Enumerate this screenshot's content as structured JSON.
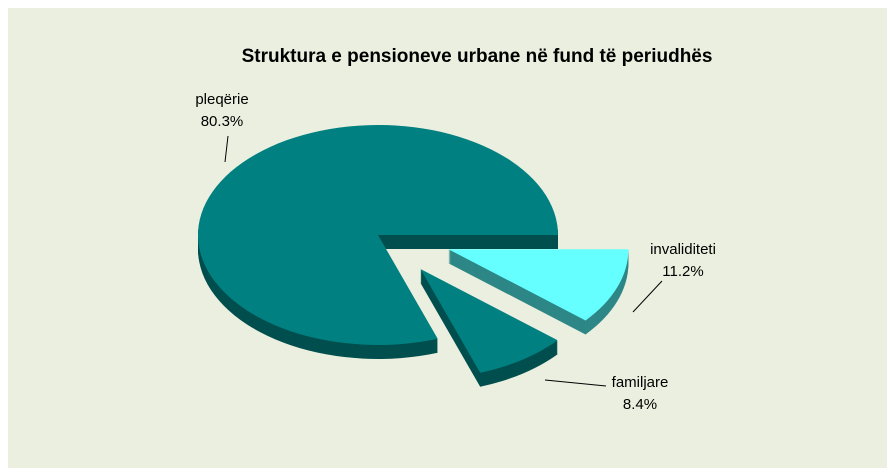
{
  "chart_data": {
    "type": "pie",
    "title": "Struktura e pensioneve urbane në fund të periudhës",
    "categories": [
      "pleqërie",
      "familjare",
      "invaliditeti"
    ],
    "values": [
      80.3,
      8.4,
      11.2
    ],
    "value_labels": [
      "80.3%",
      "8.4%",
      "11.2%"
    ],
    "colors": [
      "#008080",
      "#008080",
      "#66ffff"
    ]
  }
}
